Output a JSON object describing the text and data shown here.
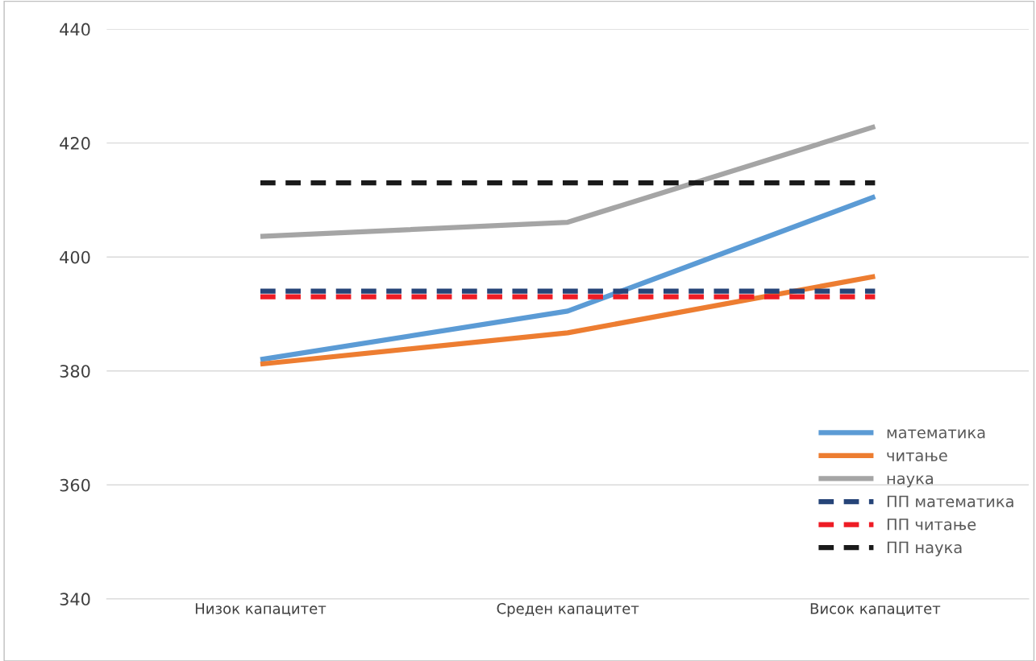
{
  "chart_data": {
    "type": "line",
    "categories": [
      "Низок капацитет",
      "Среден капацитет",
      "Висок капацитет"
    ],
    "series": [
      {
        "name": "математика",
        "color": "#5b9bd5",
        "values": [
          382.0,
          390.5,
          410.6
        ]
      },
      {
        "name": "читање",
        "color": "#ed7d31",
        "values": [
          381.2,
          386.7,
          396.6
        ]
      },
      {
        "name": "наука",
        "color": "#a5a5a5",
        "values": [
          403.6,
          406.1,
          422.9
        ]
      },
      {
        "name": "ПП математика",
        "color": "#264478",
        "values": [
          394.0,
          394.0,
          394.0
        ],
        "line_style": "dashed"
      },
      {
        "name": "ПП читање",
        "color": "#ee1c25",
        "values": [
          393.0,
          393.0,
          393.0
        ],
        "line_style": "dashed"
      },
      {
        "name": "ПП наука",
        "color": "#1a1a1a",
        "values": [
          413.0,
          413.0,
          413.0
        ],
        "line_style": "dashed"
      }
    ],
    "ylim": [
      340,
      440
    ],
    "yticks": [
      340,
      360,
      380,
      400,
      420,
      440
    ],
    "grid": "y",
    "legend": "bottom right",
    "marker": "none",
    "line_style": "solid"
  }
}
